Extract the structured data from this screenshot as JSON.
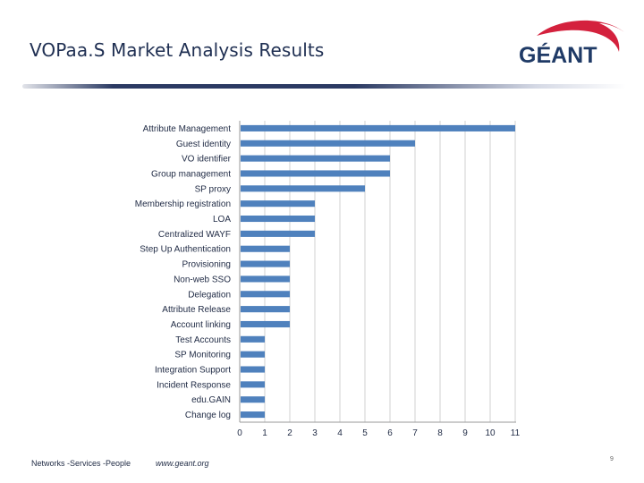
{
  "slide": {
    "title": "VOPaa.S Market Analysis Results",
    "logo_text": "GÉANT",
    "footer_tagline": "Networks -Services -People",
    "footer_url": "www.geant.org",
    "page_number": "9"
  },
  "colors": {
    "bar": "#4f81bd",
    "title": "#1f2f52",
    "logo_text": "#1f3a66",
    "logo_swoosh": "#d4213d"
  },
  "chart_data": {
    "type": "bar",
    "orientation": "horizontal",
    "title": "",
    "xlabel": "",
    "ylabel": "",
    "xlim": [
      0,
      11
    ],
    "xticks": [
      0,
      1,
      2,
      3,
      4,
      5,
      6,
      7,
      8,
      9,
      10,
      11
    ],
    "grid": true,
    "legend": "none",
    "categories": [
      "Attribute Management",
      "Guest identity",
      "VO identifier",
      "Group management",
      "SP proxy",
      "Membership registration",
      "LOA",
      "Centralized WAYF",
      "Step Up Authentication",
      "Provisioning",
      "Non-web SSO",
      "Delegation",
      "Attribute Release",
      "Account linking",
      "Test Accounts",
      "SP Monitoring",
      "Integration Support",
      "Incident Response",
      "edu.GAIN",
      "Change log"
    ],
    "values": [
      11,
      7,
      6,
      6,
      5,
      3,
      3,
      3,
      2,
      2,
      2,
      2,
      2,
      2,
      1,
      1,
      1,
      1,
      1,
      1
    ]
  }
}
